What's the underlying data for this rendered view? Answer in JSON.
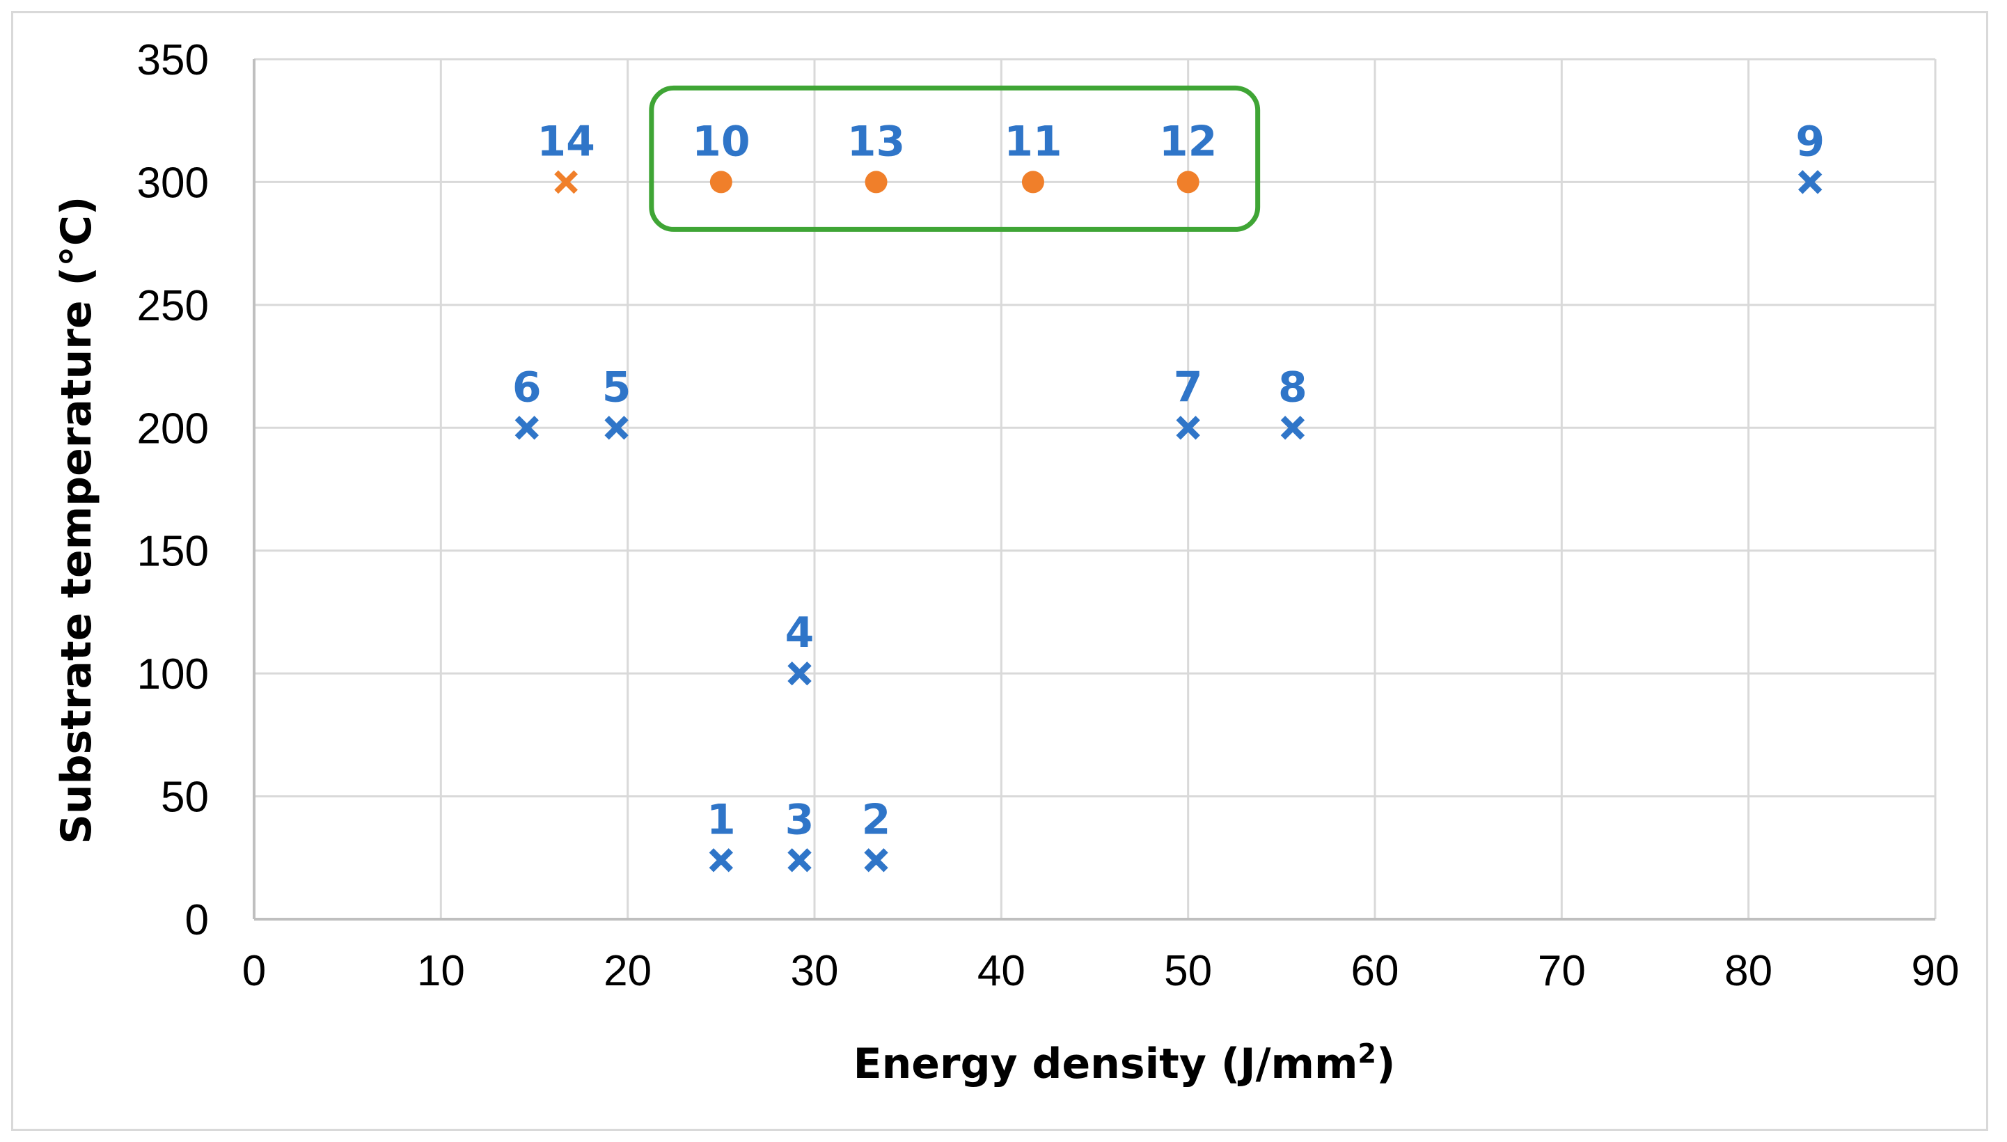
{
  "chart_data": {
    "type": "scatter",
    "title": "",
    "xlabel": "Energy density (J/mm",
    "xlabel_superscript": "2",
    "xlabel_suffix": ")",
    "ylabel": "Substrate temperature (°C)",
    "xlim": [
      0,
      90
    ],
    "ylim": [
      0,
      350
    ],
    "xticks": [
      0,
      10,
      20,
      30,
      40,
      50,
      60,
      70,
      80,
      90
    ],
    "yticks": [
      0,
      50,
      100,
      150,
      200,
      250,
      300,
      350
    ],
    "grid": true,
    "legend": "none",
    "colors": {
      "blue": "#2f75c8",
      "orange": "#f07f2a",
      "highlight_box": "#3fa535",
      "grid": "#d9d9d9",
      "axis": "#bfbfbf"
    },
    "series": [
      {
        "name": "blue-cross",
        "marker": "x",
        "color": "#2f75c8",
        "points": [
          {
            "label": "1",
            "x": 25.0,
            "y": 24
          },
          {
            "label": "2",
            "x": 33.3,
            "y": 24
          },
          {
            "label": "3",
            "x": 29.2,
            "y": 24
          },
          {
            "label": "4",
            "x": 29.2,
            "y": 100
          },
          {
            "label": "5",
            "x": 19.4,
            "y": 200
          },
          {
            "label": "6",
            "x": 14.6,
            "y": 200
          },
          {
            "label": "7",
            "x": 50.0,
            "y": 200
          },
          {
            "label": "8",
            "x": 55.6,
            "y": 200
          },
          {
            "label": "9",
            "x": 83.3,
            "y": 300
          }
        ]
      },
      {
        "name": "orange-cross",
        "marker": "x",
        "color": "#f07f2a",
        "points": [
          {
            "label": "14",
            "x": 16.7,
            "y": 300
          }
        ]
      },
      {
        "name": "orange-circle",
        "marker": "circle",
        "color": "#f07f2a",
        "points": [
          {
            "label": "10",
            "x": 25.0,
            "y": 300
          },
          {
            "label": "13",
            "x": 33.3,
            "y": 300
          },
          {
            "label": "11",
            "x": 41.7,
            "y": 300
          },
          {
            "label": "12",
            "x": 50.0,
            "y": 300
          }
        ]
      }
    ],
    "annotations": [
      {
        "type": "rounded-box",
        "color": "#3fa535",
        "encloses": [
          "10",
          "13",
          "11",
          "12"
        ]
      }
    ]
  }
}
